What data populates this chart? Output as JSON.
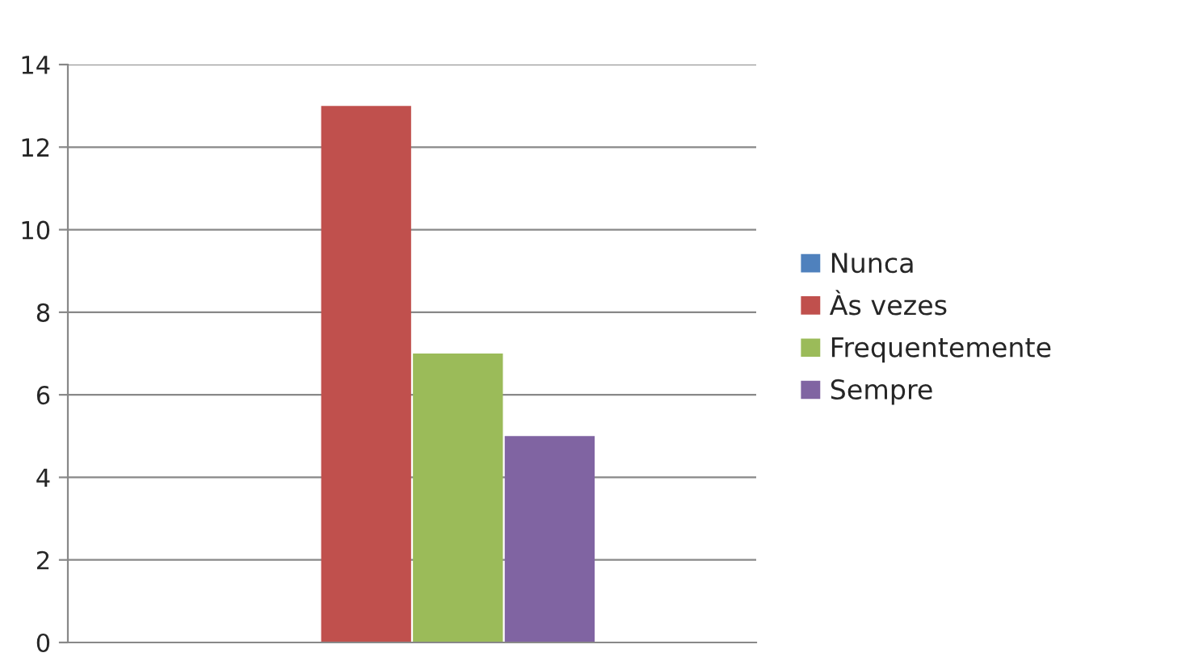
{
  "chart_data": {
    "type": "bar",
    "categories": [
      null
    ],
    "series": [
      {
        "name": "Nunca",
        "color": "#4f81bd",
        "values": [
          0
        ]
      },
      {
        "name": "Às vezes",
        "color": "#c0504d",
        "values": [
          13
        ]
      },
      {
        "name": "Frequentemente",
        "color": "#9bbb59",
        "values": [
          7
        ]
      },
      {
        "name": "Sempre",
        "color": "#8064a2",
        "values": [
          5
        ]
      }
    ],
    "ylim": [
      0,
      14
    ],
    "yticks": [
      0,
      2,
      4,
      6,
      8,
      10,
      12,
      14
    ],
    "grid": "y",
    "legend": "right"
  }
}
